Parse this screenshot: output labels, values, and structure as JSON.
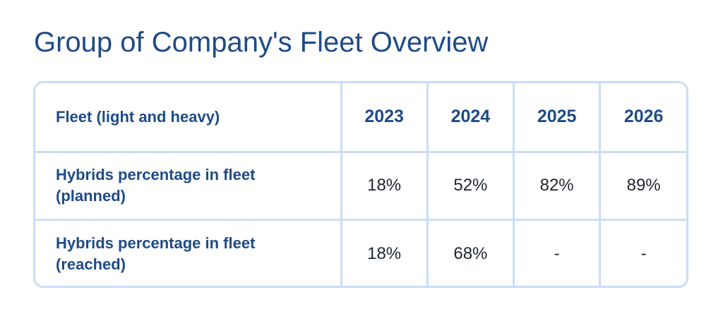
{
  "chart_data": {
    "type": "table",
    "title": "Group of Company's Fleet Overview",
    "header_label": "Fleet (light and heavy)",
    "columns": [
      "2023",
      "2024",
      "2025",
      "2026"
    ],
    "rows": [
      {
        "label_line1": "Hybrids percentage in fleet",
        "label_line2": "(planned)",
        "values": [
          "18%",
          "52%",
          "82%",
          "89%"
        ]
      },
      {
        "label_line1": "Hybrids percentage in fleet",
        "label_line2": "(reached)",
        "values": [
          "18%",
          "68%",
          "-",
          "-"
        ]
      }
    ]
  },
  "colors": {
    "title": "#1e4b86",
    "header_text": "#1e4b86",
    "value_text": "#1f2630",
    "grid": "#c9ddf6"
  }
}
